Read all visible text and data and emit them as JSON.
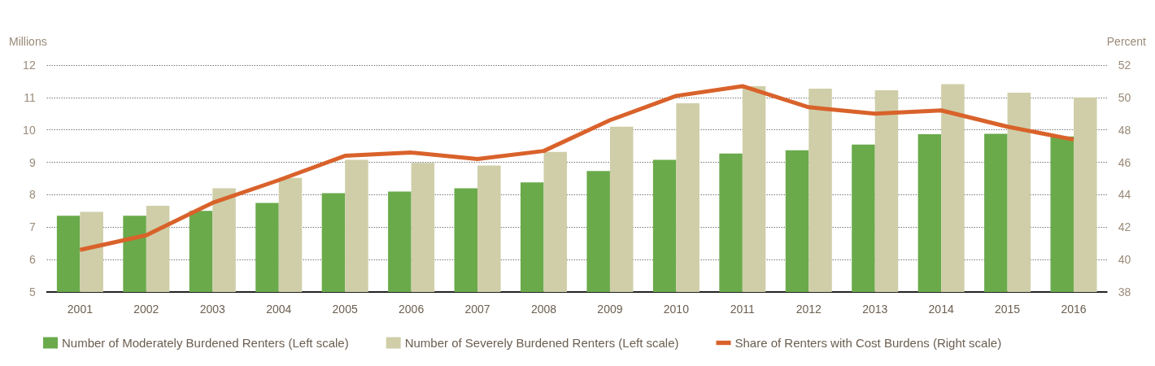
{
  "chart_data": {
    "type": "bar",
    "ylabel": "Millions",
    "y2label": "Percent",
    "categories": [
      "2001",
      "2002",
      "2003",
      "2004",
      "2005",
      "2006",
      "2007",
      "2008",
      "2009",
      "2010",
      "2011",
      "2012",
      "2013",
      "2014",
      "2015",
      "2016"
    ],
    "series": [
      {
        "name": "Number of Moderately Burdened Renters (Left scale)",
        "color": "#6aaa4b",
        "values": [
          7.35,
          7.35,
          7.5,
          7.75,
          8.05,
          8.1,
          8.2,
          8.38,
          8.73,
          9.08,
          9.27,
          9.37,
          9.55,
          9.87,
          9.88,
          9.8
        ]
      },
      {
        "name": "Number of Severely Burdened Renters (Left scale)",
        "color": "#cfcea8",
        "values": [
          7.47,
          7.66,
          8.2,
          8.52,
          9.08,
          8.98,
          8.9,
          9.32,
          10.1,
          10.82,
          11.35,
          11.27,
          11.22,
          11.41,
          11.15,
          11.0
        ]
      },
      {
        "name": "Share of Renters with Cost Burdens (Right scale)",
        "type": "line",
        "axis": "y2",
        "color": "#d9622b",
        "values": [
          40.6,
          41.5,
          43.5,
          44.9,
          46.4,
          46.6,
          46.2,
          46.7,
          48.6,
          50.1,
          50.7,
          49.4,
          49.0,
          49.2,
          48.2,
          47.4
        ]
      }
    ],
    "ylim": [
      5,
      12
    ],
    "yticks": [
      5,
      6,
      7,
      8,
      9,
      10,
      11,
      12
    ],
    "y2lim": [
      38,
      52
    ],
    "y2ticks": [
      38,
      40,
      42,
      44,
      46,
      48,
      50,
      52
    ],
    "grid": "y",
    "legend": "bottom",
    "marker": "none",
    "line_style": "solid"
  }
}
